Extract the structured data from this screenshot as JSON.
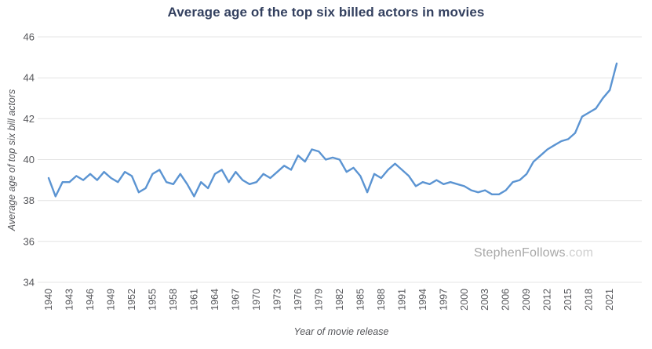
{
  "watermark": {
    "main": "StephenFollows",
    "suffix": ".com"
  },
  "chart_data": {
    "type": "line",
    "title": "Average age of the top six billed actors in movies",
    "xlabel": "Year of movie release",
    "ylabel": "Average age of top six bill actors",
    "grid": true,
    "legend_position": "none",
    "line_color": "#5b94d2",
    "grid_color": "#e4e4e4",
    "tick_color": "#55565a",
    "title_color": "#33405f",
    "ylim": [
      34,
      46
    ],
    "xlim": [
      1940,
      2022
    ],
    "y_ticks": [
      34,
      36,
      38,
      40,
      42,
      44,
      46
    ],
    "x_ticks": [
      1940,
      1943,
      1946,
      1949,
      1952,
      1955,
      1958,
      1961,
      1964,
      1967,
      1970,
      1973,
      1976,
      1979,
      1982,
      1985,
      1988,
      1991,
      1994,
      1997,
      2000,
      2003,
      2006,
      2009,
      2012,
      2015,
      2018,
      2021
    ],
    "x": [
      1940,
      1941,
      1942,
      1943,
      1944,
      1945,
      1946,
      1947,
      1948,
      1949,
      1950,
      1951,
      1952,
      1953,
      1954,
      1955,
      1956,
      1957,
      1958,
      1959,
      1960,
      1961,
      1962,
      1963,
      1964,
      1965,
      1966,
      1967,
      1968,
      1969,
      1970,
      1971,
      1972,
      1973,
      1974,
      1975,
      1976,
      1977,
      1978,
      1979,
      1980,
      1981,
      1982,
      1983,
      1984,
      1985,
      1986,
      1987,
      1988,
      1989,
      1990,
      1991,
      1992,
      1993,
      1994,
      1995,
      1996,
      1997,
      1998,
      1999,
      2000,
      2001,
      2002,
      2003,
      2004,
      2005,
      2006,
      2007,
      2008,
      2009,
      2010,
      2011,
      2012,
      2013,
      2014,
      2015,
      2016,
      2017,
      2018,
      2019,
      2020,
      2021,
      2022
    ],
    "values": [
      39.1,
      38.2,
      38.9,
      38.9,
      39.2,
      39.0,
      39.3,
      39.0,
      39.4,
      39.1,
      38.9,
      39.4,
      39.2,
      38.4,
      38.6,
      39.3,
      39.5,
      38.9,
      38.8,
      39.3,
      38.8,
      38.2,
      38.9,
      38.6,
      39.3,
      39.5,
      38.9,
      39.4,
      39.0,
      38.8,
      38.9,
      39.3,
      39.1,
      39.4,
      39.7,
      39.5,
      40.2,
      39.9,
      40.5,
      40.4,
      40.0,
      40.1,
      40.0,
      39.4,
      39.6,
      39.2,
      38.4,
      39.3,
      39.1,
      39.5,
      39.8,
      39.5,
      39.2,
      38.7,
      38.9,
      38.8,
      39.0,
      38.8,
      38.9,
      38.8,
      38.7,
      38.5,
      38.4,
      38.5,
      38.3,
      38.3,
      38.5,
      38.9,
      39.0,
      39.3,
      39.9,
      40.2,
      40.5,
      40.7,
      40.9,
      41.0,
      41.3,
      42.1,
      42.3,
      42.5,
      43.0,
      43.4,
      44.7
    ]
  }
}
